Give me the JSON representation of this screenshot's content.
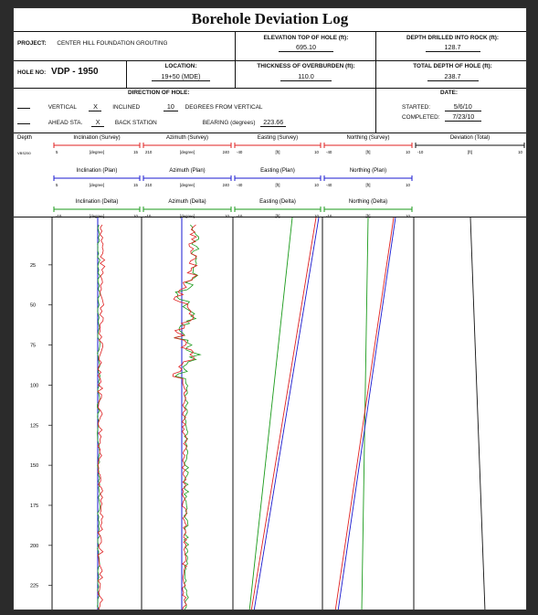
{
  "title": "Borehole Deviation Log",
  "project": {
    "label": "PROJECT:",
    "value": "CENTER HILL FOUNDATION GROUTING"
  },
  "elevation": {
    "label": "ELEVATION TOP OF HOLE (ft):",
    "value": "695.10"
  },
  "depth_rock": {
    "label": "DEPTH DRILLED INTO ROCK (ft):",
    "value": "128.7"
  },
  "hole_no": {
    "label": "HOLE NO:",
    "value": "VDP - 1950"
  },
  "location": {
    "label": "LOCATION:",
    "value": "19+50 (MDE)"
  },
  "overburden": {
    "label": "THICKNESS OF OVERBURDEN (ft):",
    "value": "110.0"
  },
  "total_depth": {
    "label": "TOTAL DEPTH OF HOLE (ft):",
    "value": "238.7"
  },
  "direction": {
    "label": "DIRECTION OF HOLE:"
  },
  "date": {
    "label": "DATE:"
  },
  "vertical": {
    "label": "VERTICAL",
    "mark": "X"
  },
  "inclined": {
    "label": "INCLINED",
    "value": "10",
    "suffix": "DEGREES FROM VERTICAL"
  },
  "ahead": {
    "label": "AHEAD STA.",
    "mark": "X"
  },
  "back": {
    "label": "BACK STATION"
  },
  "bearing": {
    "label": "BEARING (degrees)",
    "value": "223.66"
  },
  "started": {
    "label": "STARTED:",
    "value": "5/6/10"
  },
  "completed": {
    "label": "COMPLETED:",
    "value": "7/23/10"
  },
  "depth_col": {
    "label": "Depth",
    "sub": "VBS250"
  },
  "tracks": [
    {
      "survey": "Inclination (Survey)",
      "plan": "Inclination (Plan)",
      "delta": "Inclination (Delta)",
      "s_min": "5",
      "s_max": "15",
      "p_min": "5",
      "p_max": "15",
      "d_min": "-10",
      "d_max": "10",
      "unit": "[degree]"
    },
    {
      "survey": "Azimuth (Survey)",
      "plan": "Azimuth (Plan)",
      "delta": "Azimuth (Delta)",
      "s_min": "210",
      "s_max": "240",
      "p_min": "210",
      "p_max": "240",
      "d_min": "-10",
      "d_max": "10",
      "unit": "[degree]"
    },
    {
      "survey": "Easting (Survey)",
      "plan": "Easting (Plan)",
      "delta": "Easting (Delta)",
      "s_min": "-40",
      "s_max": "10",
      "p_min": "-40",
      "p_max": "10",
      "d_min": "-10",
      "d_max": "10",
      "unit": "[ft]"
    },
    {
      "survey": "Northing (Survey)",
      "plan": "Northing (Plan)",
      "delta": "Northing (Delta)",
      "s_min": "-40",
      "s_max": "10",
      "p_min": "-40",
      "p_max": "10",
      "d_min": "-10",
      "d_max": "10",
      "unit": "[ft]"
    },
    {
      "survey": "Deviation (Total)",
      "s_min": "-10",
      "s_max": "10",
      "unit": "[ft]"
    }
  ],
  "depth_ticks": [
    "25",
    "50",
    "75",
    "100",
    "125",
    "150",
    "175",
    "200",
    "225"
  ],
  "colors": {
    "survey": "#e02020",
    "plan": "#1a1ad0",
    "delta": "#1a9a1a",
    "black": "#111111"
  }
}
